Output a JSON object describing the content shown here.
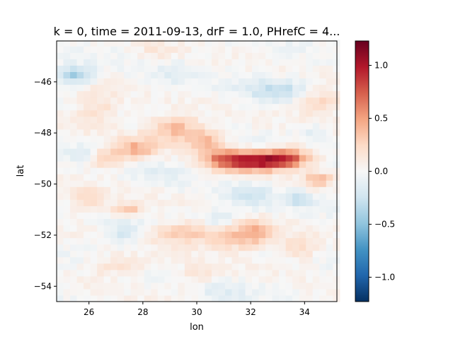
{
  "chart_data": {
    "type": "heatmap",
    "title": "k = 0, time = 2011-09-13, drF = 1.0, PHrefC = 4...",
    "xlabel": "lon",
    "ylabel": "lat",
    "xlim": [
      24.8,
      35.2
    ],
    "ylim": [
      -54.6,
      -44.4
    ],
    "xticks": [
      26,
      28,
      30,
      32,
      34
    ],
    "yticks": [
      -54,
      -52,
      -50,
      -48,
      -46
    ],
    "xtick_labels": [
      "26",
      "28",
      "30",
      "32",
      "34"
    ],
    "ytick_labels": [
      "−54",
      "−52",
      "−50",
      "−48",
      "−46"
    ],
    "colormap": "RdBu_r",
    "vmin": -1.23,
    "vmax": 1.23,
    "colorbar_ticks": [
      -1.0,
      -0.5,
      0.0,
      0.5,
      1.0
    ],
    "colorbar_tick_labels": [
      "−1.0",
      "−0.5",
      "0.0",
      "0.5",
      "1.0"
    ],
    "grid_resolution": 0.25,
    "features": [
      {
        "lon": 32.3,
        "lat": -49.1,
        "sx": 0.9,
        "sy": 0.25,
        "amp": 0.95
      },
      {
        "lon": 33.4,
        "lat": -48.9,
        "sx": 0.6,
        "sy": 0.25,
        "amp": 0.55
      },
      {
        "lon": 31.0,
        "lat": -49.0,
        "sx": 0.6,
        "sy": 0.3,
        "amp": 0.45
      },
      {
        "lon": 29.2,
        "lat": -47.8,
        "sx": 0.7,
        "sy": 0.35,
        "amp": 0.4
      },
      {
        "lon": 30.3,
        "lat": -48.3,
        "sx": 0.5,
        "sy": 0.3,
        "amp": 0.35
      },
      {
        "lon": 27.7,
        "lat": -48.6,
        "sx": 0.6,
        "sy": 0.3,
        "amp": 0.4
      },
      {
        "lon": 26.6,
        "lat": -49.0,
        "sx": 0.5,
        "sy": 0.25,
        "amp": 0.3
      },
      {
        "lon": 29.5,
        "lat": -51.9,
        "sx": 0.8,
        "sy": 0.3,
        "amp": 0.35
      },
      {
        "lon": 31.5,
        "lat": -52.1,
        "sx": 0.8,
        "sy": 0.35,
        "amp": 0.35
      },
      {
        "lon": 32.2,
        "lat": -51.8,
        "sx": 0.4,
        "sy": 0.3,
        "amp": 0.3
      },
      {
        "lon": 27.4,
        "lat": -51.0,
        "sx": 0.5,
        "sy": 0.2,
        "amp": 0.35
      },
      {
        "lon": 25.9,
        "lat": -50.6,
        "sx": 0.5,
        "sy": 0.3,
        "amp": 0.25
      },
      {
        "lon": 34.5,
        "lat": -49.8,
        "sx": 0.4,
        "sy": 0.2,
        "amp": 0.35
      },
      {
        "lon": 34.5,
        "lat": -46.8,
        "sx": 0.6,
        "sy": 0.4,
        "amp": 0.3
      },
      {
        "lon": 26.3,
        "lat": -47.0,
        "sx": 0.6,
        "sy": 0.5,
        "amp": 0.22
      },
      {
        "lon": 33.8,
        "lat": -52.5,
        "sx": 0.5,
        "sy": 0.3,
        "amp": 0.25
      },
      {
        "lon": 27.0,
        "lat": -53.2,
        "sx": 0.8,
        "sy": 0.3,
        "amp": 0.18
      },
      {
        "lon": 30.0,
        "lat": -53.6,
        "sx": 0.6,
        "sy": 0.3,
        "amp": 0.15
      },
      {
        "lon": 25.5,
        "lat": -45.7,
        "sx": 0.5,
        "sy": 0.25,
        "amp": -0.45
      },
      {
        "lon": 33.0,
        "lat": -46.3,
        "sx": 0.9,
        "sy": 0.3,
        "amp": -0.28
      },
      {
        "lon": 32.0,
        "lat": -50.5,
        "sx": 0.6,
        "sy": 0.3,
        "amp": -0.22
      },
      {
        "lon": 33.8,
        "lat": -50.6,
        "sx": 0.3,
        "sy": 0.2,
        "amp": -0.3
      },
      {
        "lon": 27.3,
        "lat": -51.9,
        "sx": 0.5,
        "sy": 0.3,
        "amp": -0.22
      },
      {
        "lon": 30.8,
        "lat": -51.3,
        "sx": 0.4,
        "sy": 0.2,
        "amp": -0.22
      },
      {
        "lon": 25.7,
        "lat": -48.8,
        "sx": 0.4,
        "sy": 0.2,
        "amp": -0.18
      },
      {
        "lon": 34.4,
        "lat": -48.0,
        "sx": 0.4,
        "sy": 0.3,
        "amp": -0.15
      },
      {
        "lon": 29.2,
        "lat": -45.7,
        "sx": 0.5,
        "sy": 0.3,
        "amp": -0.12
      },
      {
        "lon": 28.6,
        "lat": -49.6,
        "sx": 0.6,
        "sy": 0.3,
        "amp": -0.1
      },
      {
        "lon": 31.0,
        "lat": -54.2,
        "sx": 0.6,
        "sy": 0.3,
        "amp": -0.12
      },
      {
        "lon": 28.5,
        "lat": -44.8,
        "sx": 0.5,
        "sy": 0.3,
        "amp": 0.12
      }
    ]
  }
}
